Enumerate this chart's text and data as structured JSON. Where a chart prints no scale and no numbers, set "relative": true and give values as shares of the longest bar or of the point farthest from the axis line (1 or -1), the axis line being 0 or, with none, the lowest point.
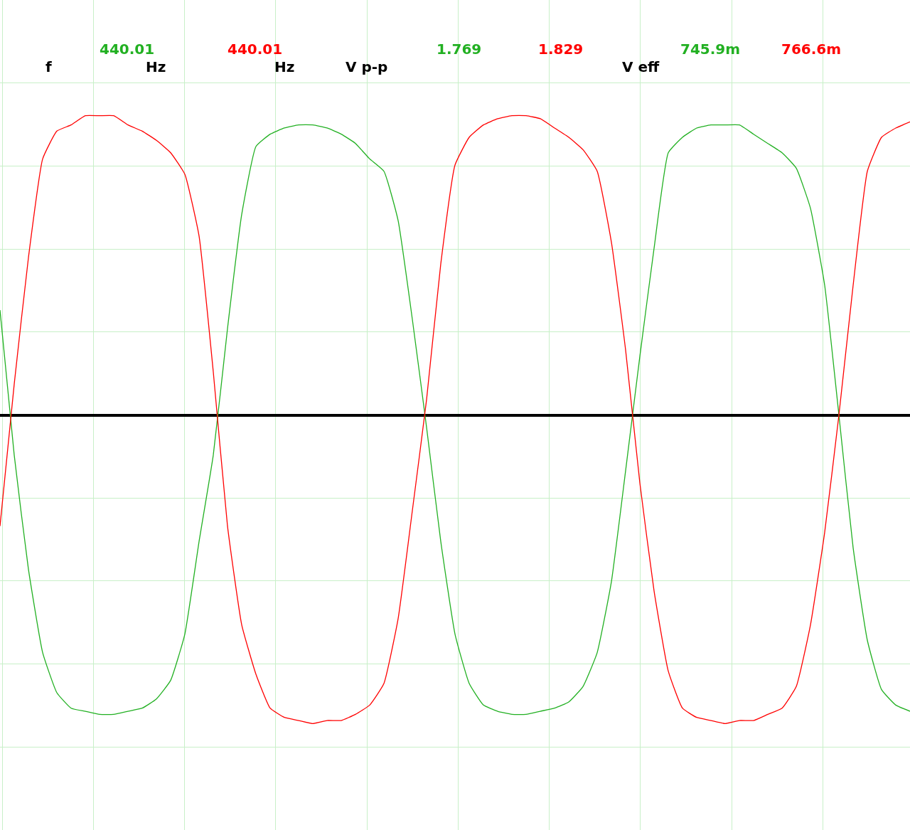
{
  "chart_data": {
    "type": "line",
    "relative": true,
    "grid": true,
    "categories": [
      null,
      null,
      null,
      null,
      null,
      null,
      null,
      null,
      null,
      null,
      null,
      null,
      null,
      null,
      null,
      null,
      null,
      null,
      null,
      null,
      null,
      null,
      null,
      null,
      null,
      null,
      null,
      null,
      null,
      null,
      null,
      null,
      null,
      null,
      null,
      null,
      null,
      null,
      null,
      null,
      null,
      null,
      null,
      null,
      null,
      null,
      null,
      null,
      null,
      null,
      null,
      null,
      null,
      null,
      null,
      null,
      null,
      null,
      null,
      null,
      null,
      null,
      null,
      null,
      null
    ],
    "series": [
      {
        "color": "#22b022",
        "values": [
          0.34,
          -0.13,
          -0.5,
          -0.77,
          -0.9,
          -0.95,
          -0.96,
          -0.97,
          -0.97,
          -0.96,
          -0.95,
          -0.92,
          -0.86,
          -0.71,
          -0.41,
          -0.13,
          0.28,
          0.65,
          0.87,
          0.91,
          0.93,
          0.94,
          0.94,
          0.93,
          0.91,
          0.88,
          0.83,
          0.79,
          0.63,
          0.31,
          -0.04,
          -0.41,
          -0.71,
          -0.87,
          -0.94,
          -0.96,
          -0.97,
          -0.97,
          -0.96,
          -0.95,
          -0.93,
          -0.88,
          -0.77,
          -0.54,
          -0.18,
          0.19,
          0.54,
          0.85,
          0.9,
          0.93,
          0.94,
          0.94,
          0.94,
          0.91,
          0.88,
          0.85,
          0.8,
          0.67,
          0.42,
          0,
          -0.43,
          -0.73,
          -0.89,
          -0.94,
          -0.96
        ]
      },
      {
        "color": "#ff0000",
        "values": [
          -0.36,
          0.1,
          0.51,
          0.83,
          0.92,
          0.94,
          0.97,
          0.97,
          0.97,
          0.94,
          0.92,
          0.89,
          0.85,
          0.78,
          0.58,
          0.14,
          -0.36,
          -0.68,
          -0.84,
          -0.95,
          -0.98,
          -0.99,
          -1.0,
          -0.99,
          -0.99,
          -0.97,
          -0.94,
          -0.87,
          -0.66,
          -0.31,
          0.05,
          0.49,
          0.81,
          0.9,
          0.94,
          0.96,
          0.97,
          0.97,
          0.96,
          0.93,
          0.9,
          0.86,
          0.79,
          0.56,
          0.21,
          -0.22,
          -0.57,
          -0.83,
          -0.95,
          -0.98,
          -0.99,
          -1.0,
          -0.99,
          -0.99,
          -0.97,
          -0.95,
          -0.88,
          -0.68,
          -0.38,
          0,
          0.42,
          0.79,
          0.9,
          0.93,
          0.95
        ]
      }
    ],
    "annotations": [
      "f",
      "440.01",
      "Hz",
      "440.01",
      "Hz",
      "V p-p",
      "1.769",
      "1.829",
      "V eff",
      "745.9m",
      "766.6m"
    ]
  }
}
